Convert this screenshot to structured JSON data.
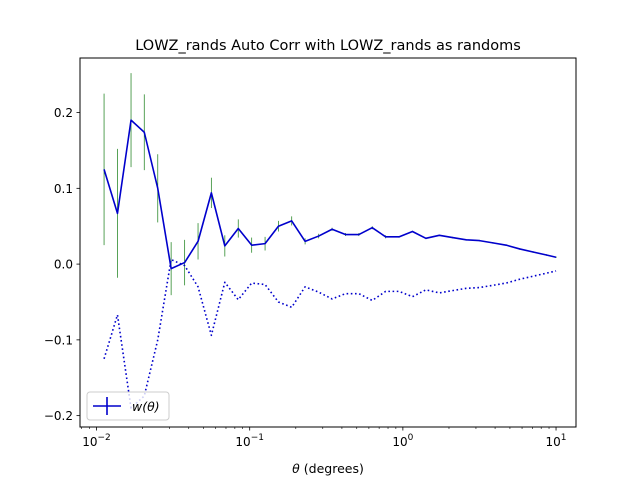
{
  "chart_data": {
    "type": "line",
    "title": "LOWZ_rands Auto Corr with LOWZ_rands as randoms",
    "xlabel_symbol": "θ",
    "xlabel_unit": " (degrees)",
    "xscale": "log",
    "xlim": [
      0.0078,
      13.5
    ],
    "ylim": [
      -0.215,
      0.272
    ],
    "x_ticks": [
      {
        "value": 0.01,
        "base": "10",
        "exp": "−2"
      },
      {
        "value": 0.1,
        "base": "10",
        "exp": "−1"
      },
      {
        "value": 1,
        "base": "10",
        "exp": "0"
      },
      {
        "value": 10,
        "base": "10",
        "exp": "1"
      }
    ],
    "y_ticks": [
      {
        "value": 0.2,
        "label": "0.2"
      },
      {
        "value": 0.1,
        "label": "0.1"
      },
      {
        "value": 0.0,
        "label": "0.0"
      },
      {
        "value": -0.1,
        "label": "−0.1"
      },
      {
        "value": -0.2,
        "label": "−0.2"
      }
    ],
    "x": [
      0.0112,
      0.0137,
      0.0168,
      0.0205,
      0.0251,
      0.0307,
      0.0376,
      0.046,
      0.0562,
      0.0688,
      0.0842,
      0.103,
      0.126,
      0.154,
      0.188,
      0.23,
      0.282,
      0.345,
      0.422,
      0.516,
      0.631,
      0.772,
      0.944,
      1.155,
      1.413,
      1.73,
      2.11,
      2.59,
      3.16,
      3.87,
      4.73,
      5.79,
      7.08,
      8.66,
      10.0
    ],
    "series": [
      {
        "name": "w(θ)",
        "legend_label": "w(θ)",
        "color": "#0000cc",
        "error_color": "#2e8b2e",
        "values": [
          0.125,
          0.067,
          0.19,
          0.174,
          0.1,
          -0.006,
          0.002,
          0.03,
          0.094,
          0.024,
          0.047,
          0.025,
          0.027,
          0.05,
          0.057,
          0.03,
          0.037,
          0.046,
          0.039,
          0.039,
          0.048,
          0.036,
          0.036,
          0.043,
          0.034,
          0.038,
          0.035,
          0.032,
          0.031,
          0.028,
          0.025,
          0.02,
          0.016,
          0.012,
          0.009
        ],
        "errors": [
          0.1,
          0.085,
          0.062,
          0.05,
          0.045,
          0.035,
          0.03,
          0.024,
          0.02,
          0.014,
          0.012,
          0.01,
          0.009,
          0.007,
          0.006,
          0.004,
          0.003,
          0.002,
          0.002,
          0.002,
          0.002,
          0.002,
          0.001,
          0.001,
          0.001,
          0.001,
          0.001,
          0.001,
          0.001,
          0.001,
          0.001,
          0.001,
          0.001,
          0.001,
          0.001
        ]
      },
      {
        "name": "",
        "style": "dotted",
        "color": "#0000cc",
        "values": [
          -0.125,
          -0.067,
          -0.19,
          -0.174,
          -0.1,
          0.006,
          -0.002,
          -0.03,
          -0.094,
          -0.024,
          -0.047,
          -0.025,
          -0.027,
          -0.05,
          -0.057,
          -0.03,
          -0.037,
          -0.046,
          -0.039,
          -0.039,
          -0.048,
          -0.036,
          -0.036,
          -0.043,
          -0.034,
          -0.038,
          -0.035,
          -0.032,
          -0.031,
          -0.028,
          -0.025,
          -0.02,
          -0.016,
          -0.012,
          -0.009
        ]
      }
    ],
    "legend_position": "lower-left",
    "grid": false
  }
}
